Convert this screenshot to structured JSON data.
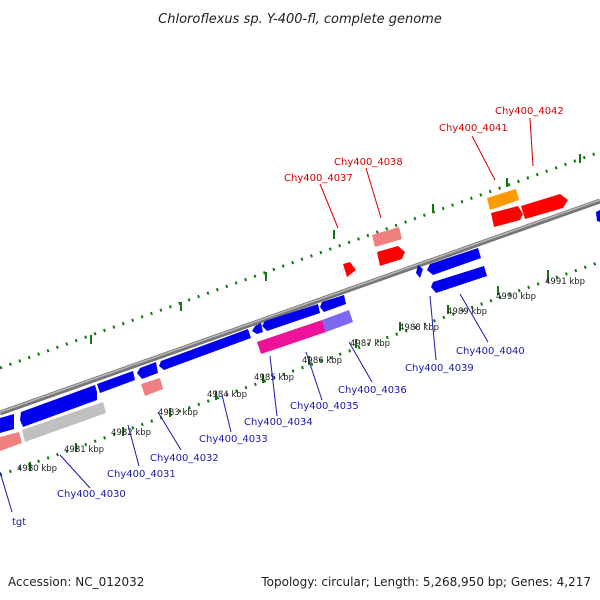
{
  "title": "Chloroflexus sp. Y-400-fl, complete genome",
  "footer": {
    "accession": "Accession: NC_012032",
    "summary": "Topology: circular; Length: 5,268,950 bp; Genes: 4,217"
  },
  "colors": {
    "forward_cds": "#ff0000",
    "reverse_cds": "#0000ee",
    "rna_light": "#f08080",
    "pseudo_gray": "#c0c0c0",
    "magenta": "#ee1199",
    "orange": "#ff9900",
    "backbone": "#888888",
    "ticks": "#117711",
    "label_red": "#d40000",
    "label_blue": "#1a1aa6"
  },
  "kbp_ticks": [
    "4980 kbp",
    "4981 kbp",
    "4982 kbp",
    "4983 kbp",
    "4984 kbp",
    "4985 kbp",
    "4986 kbp",
    "4987 kbp",
    "4988 kbp",
    "4989 kbp",
    "4990 kbp",
    "4991 kbp"
  ],
  "forward_labels": [
    "Chy400_4037",
    "Chy400_4038",
    "Chy400_4041",
    "Chy400_4042"
  ],
  "reverse_labels": [
    "tgt",
    "Chy400_4030",
    "Chy400_4031",
    "Chy400_4032",
    "Chy400_4033",
    "Chy400_4034",
    "Chy400_4035",
    "Chy400_4036",
    "Chy400_4039",
    "Chy400_4040"
  ]
}
